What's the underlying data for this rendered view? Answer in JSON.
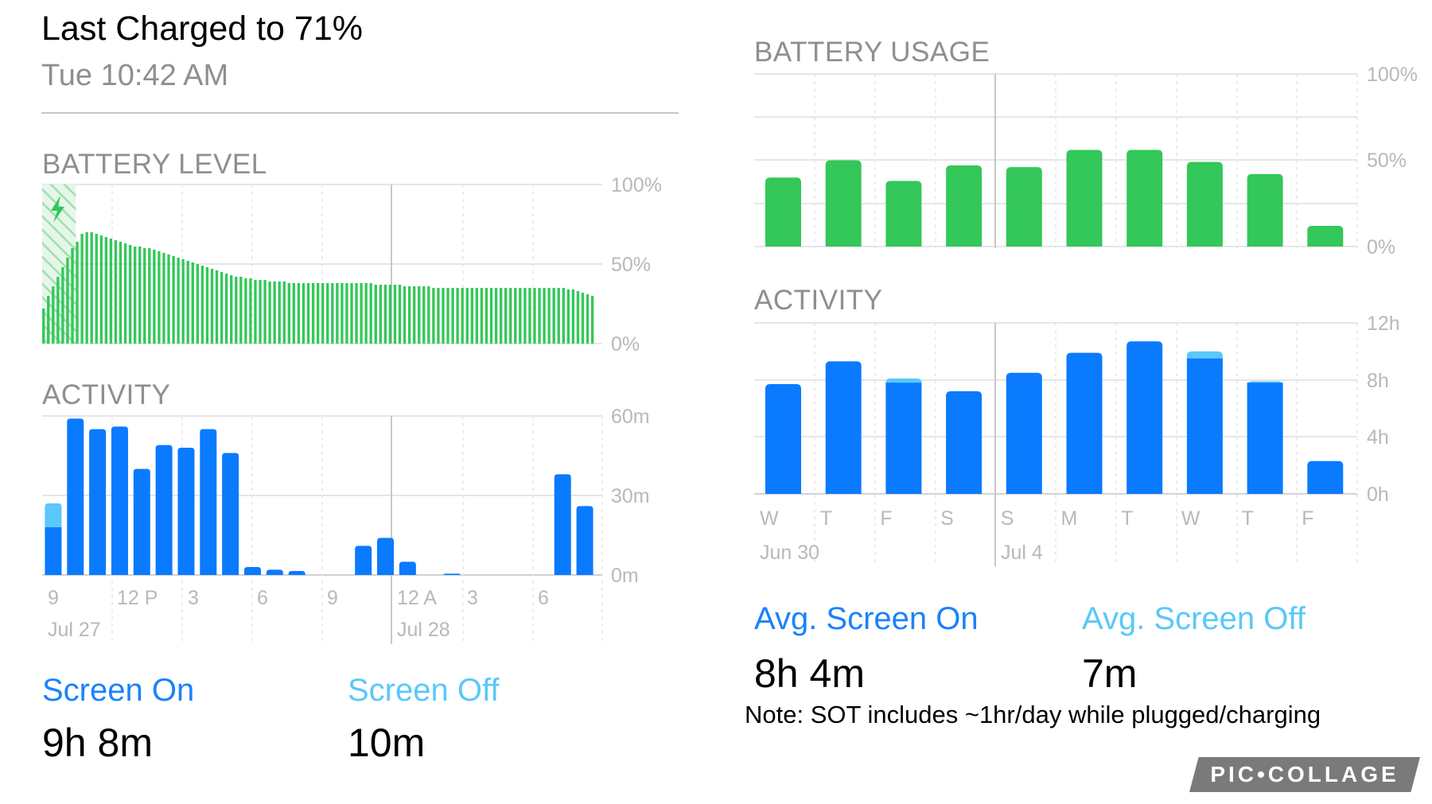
{
  "left": {
    "title": "Last Charged to 71%",
    "subtitle": "Tue 10:42 AM",
    "battery_level_label": "BATTERY LEVEL",
    "activity_label": "ACTIVITY",
    "screen_on_label": "Screen On",
    "screen_on_value": "9h 8m",
    "screen_off_label": "Screen Off",
    "screen_off_value": "10m"
  },
  "right": {
    "usage_label": "BATTERY USAGE",
    "activity_label": "ACTIVITY",
    "avg_on_label": "Avg. Screen On",
    "avg_on_value": "8h 4m",
    "avg_off_label": "Avg. Screen Off",
    "avg_off_value": "7m",
    "note": "Note: SOT includes ~1hr/day while plugged/charging"
  },
  "watermark": "PIC•COLLAGE",
  "colors": {
    "green": "#34c759",
    "blue": "#0a7aff",
    "light_blue": "#5ac8fa",
    "grid": "#e5e5ea",
    "axis_text": "#b8b8bd"
  },
  "chart_data": [
    {
      "type": "bar",
      "name": "battery_level",
      "ylim": [
        0,
        100
      ],
      "ytick_labels": [
        "100%",
        "50%",
        "0%"
      ],
      "charging_segment_count": 7,
      "values": [
        22,
        30,
        36,
        42,
        48,
        54,
        60,
        64,
        69,
        70,
        70,
        69,
        68,
        67,
        66,
        65,
        64,
        63,
        62,
        61,
        61,
        60,
        60,
        59,
        58,
        57,
        56,
        55,
        54,
        53,
        52,
        51,
        50,
        49,
        48,
        47,
        46,
        45,
        44,
        43,
        42,
        42,
        41,
        41,
        40,
        40,
        40,
        39,
        39,
        39,
        39,
        38,
        38,
        38,
        38,
        38,
        38,
        38,
        38,
        38,
        38,
        38,
        38,
        38,
        38,
        38,
        38,
        38,
        38,
        37,
        37,
        37,
        37,
        37,
        37,
        36,
        36,
        36,
        36,
        36,
        36,
        35,
        35,
        35,
        35,
        35,
        35,
        35,
        35,
        35,
        35,
        35,
        35,
        35,
        35,
        35,
        35,
        35,
        35,
        35,
        35,
        35,
        35,
        35,
        35,
        35,
        35,
        35,
        35,
        34,
        34,
        33,
        32,
        31,
        30
      ]
    },
    {
      "type": "bar",
      "name": "activity_hourly",
      "ylim": [
        0,
        60
      ],
      "ytick_labels": [
        "60m",
        "30m",
        "0m"
      ],
      "x_tick_labels": [
        "9",
        "12 P",
        "3",
        "6",
        "9",
        "12 A",
        "3",
        "6"
      ],
      "date_labels": [
        "Jul 27",
        "Jul 28"
      ],
      "screen_on": [
        18,
        59,
        55,
        56,
        40,
        49,
        48,
        55,
        46,
        3,
        2,
        1.5,
        0,
        0,
        11,
        14,
        5,
        0,
        0.5,
        0,
        0,
        0,
        0,
        38,
        26
      ],
      "screen_off": [
        9,
        0,
        0,
        0,
        0,
        0,
        0,
        0,
        0,
        0,
        0,
        0,
        0,
        0,
        0,
        0,
        0,
        0,
        0,
        0,
        0,
        0,
        0,
        0,
        0
      ]
    },
    {
      "type": "bar",
      "name": "battery_usage_daily",
      "ylim": [
        0,
        100
      ],
      "ytick_labels": [
        "100%",
        "50%",
        "0%"
      ],
      "values": [
        40,
        50,
        38,
        47,
        46,
        56,
        56,
        49,
        42,
        12
      ]
    },
    {
      "type": "bar",
      "name": "activity_daily",
      "ylim": [
        0,
        12
      ],
      "ytick_labels": [
        "12h",
        "8h",
        "4h",
        "0h"
      ],
      "categories": [
        "W",
        "T",
        "F",
        "S",
        "S",
        "M",
        "T",
        "W",
        "T",
        "F"
      ],
      "date_labels": [
        "Jun 30",
        "Jul 4"
      ],
      "screen_on": [
        7.7,
        9.3,
        7.8,
        7.2,
        8.5,
        9.9,
        10.7,
        9.5,
        7.8,
        2.3
      ],
      "screen_off": [
        0,
        0,
        0.3,
        0,
        0,
        0,
        0,
        0.5,
        0.1,
        0
      ]
    }
  ]
}
